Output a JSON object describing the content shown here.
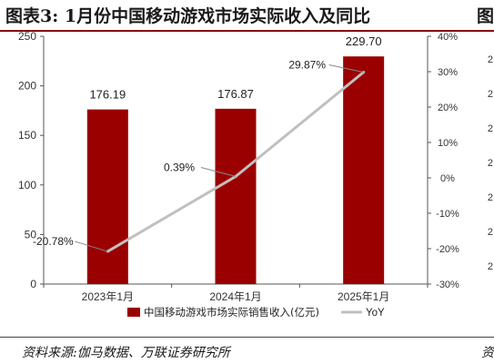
{
  "header": {
    "title": "图表3:   1月份中国移动游戏市场实际收入及同比",
    "next_title_fragment": "图"
  },
  "footer": {
    "source": "资料来源:伽马数据、万联证券研究所",
    "next_source_fragment": "资"
  },
  "next_panel_ticks": [
    "2",
    "2",
    "2",
    "2",
    "2",
    "2",
    "2"
  ],
  "chart_data": {
    "type": "bar",
    "categories": [
      "2023年1月",
      "2024年1月",
      "2025年1月"
    ],
    "series": [
      {
        "name": "中国移动游戏市场实际销售收入(亿元)",
        "type": "bar",
        "axis": "left",
        "values": [
          176.19,
          176.87,
          229.7
        ],
        "labels": [
          "176.19",
          "176.87",
          "229.70"
        ],
        "color": "#9b0000"
      },
      {
        "name": "YoY",
        "type": "line",
        "axis": "right",
        "values": [
          -20.78,
          0.39,
          29.87
        ],
        "labels": [
          "-20.78%",
          "0.39%",
          "29.87%"
        ],
        "color": "#c0c0c0"
      }
    ],
    "ylim": [
      0,
      250
    ],
    "yticks": [
      "0",
      "50",
      "100",
      "150",
      "200",
      "250"
    ],
    "y2lim": [
      -30,
      40
    ],
    "y2ticks": [
      "-30%",
      "-20%",
      "-10%",
      "0%",
      "10%",
      "20%",
      "30%",
      "40%"
    ],
    "grid": false,
    "legend": "bottom"
  }
}
